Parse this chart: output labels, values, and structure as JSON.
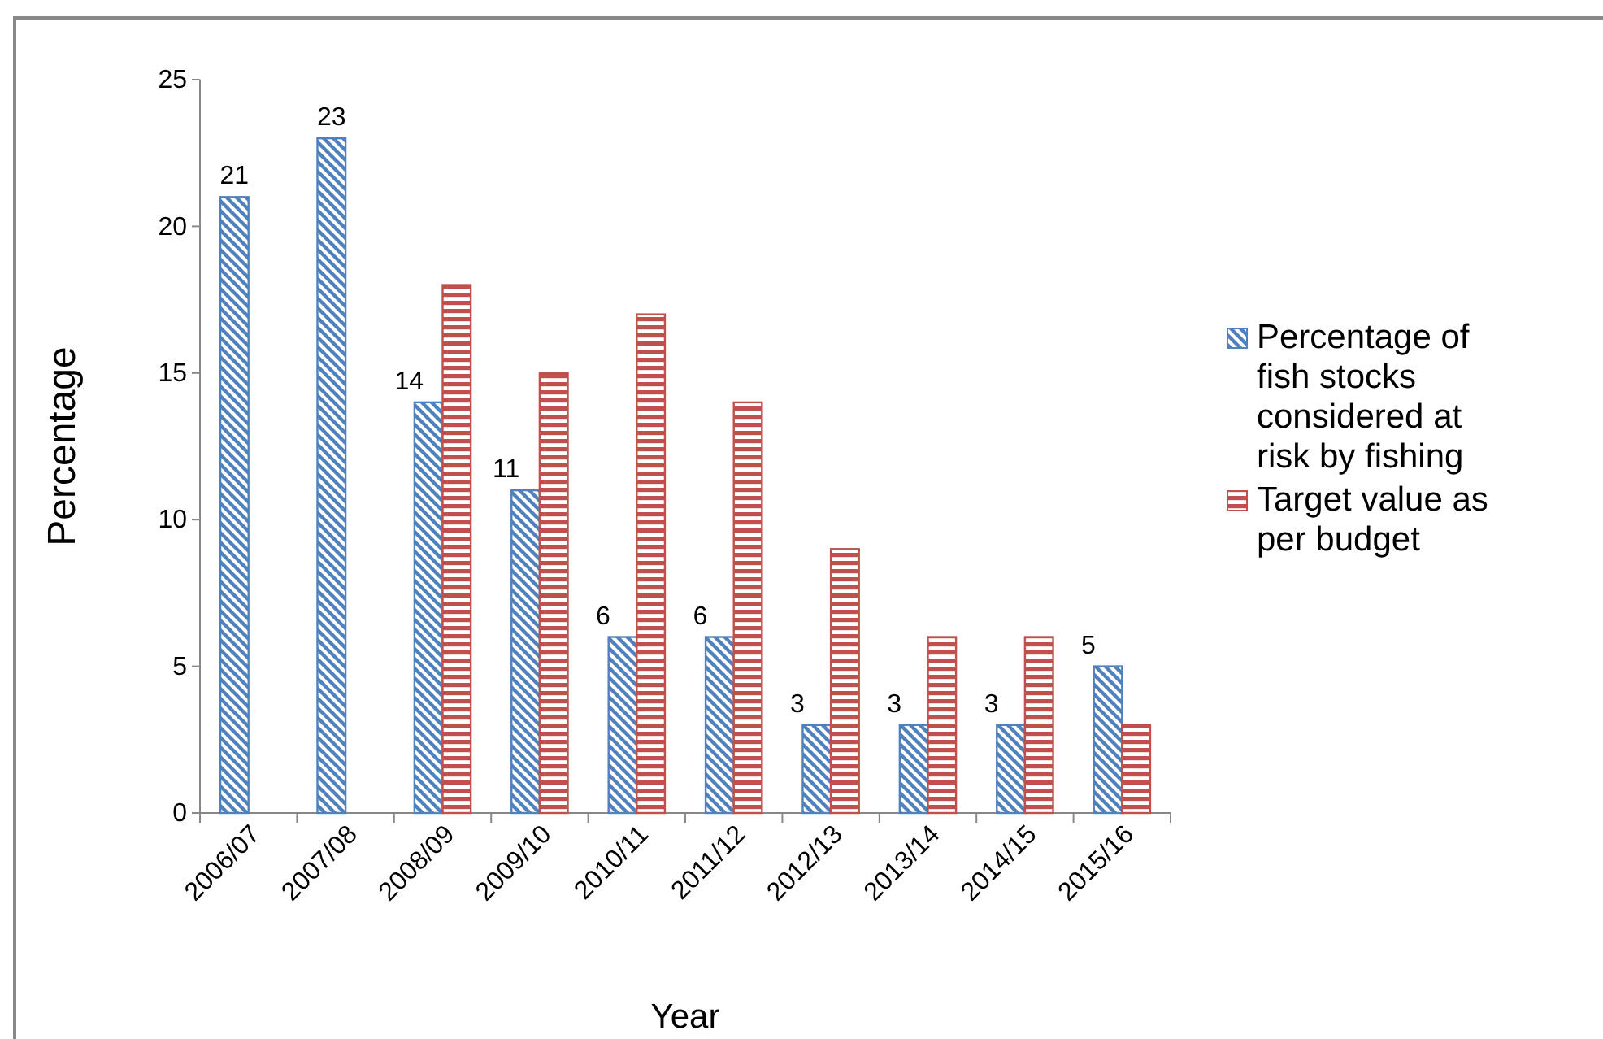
{
  "chart_data": {
    "type": "bar",
    "xlabel": "Year",
    "ylabel": "Percentage",
    "categories": [
      "2006/07",
      "2007/08",
      "2008/09",
      "2009/10",
      "2010/11",
      "2011/12",
      "2012/13",
      "2013/14",
      "2014/15",
      "2015/16"
    ],
    "series": [
      {
        "name": "Percentage of fish stocks considered at risk by fishing",
        "color": "#4f81bd",
        "values": [
          21,
          23,
          14,
          11,
          6,
          6,
          3,
          3,
          3,
          5
        ],
        "value_labels": [
          "21",
          "23",
          "14",
          "11",
          "6",
          "6",
          "3",
          "3",
          "3",
          "5"
        ]
      },
      {
        "name": "Target value as per budget",
        "color": "#c0504d",
        "values": [
          null,
          null,
          18,
          15,
          17,
          14,
          9,
          6,
          6,
          3
        ]
      }
    ],
    "ylim": [
      0,
      25
    ],
    "yticks": [
      0,
      5,
      10,
      15,
      20,
      25
    ],
    "grid": false,
    "legend": "right"
  }
}
